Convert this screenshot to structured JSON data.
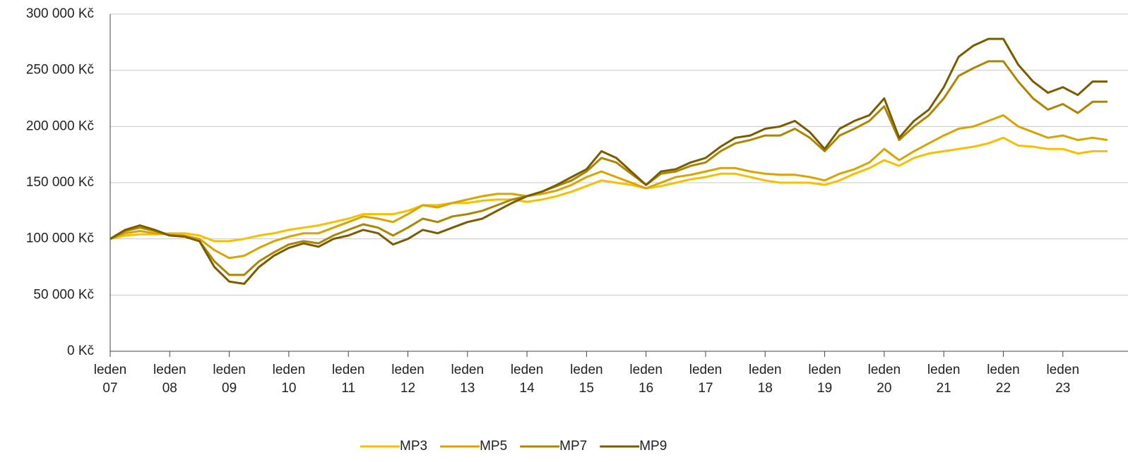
{
  "chart_data": {
    "type": "line",
    "x": [
      "2007-01",
      "2007-04",
      "2007-07",
      "2007-10",
      "2008-01",
      "2008-04",
      "2008-07",
      "2008-10",
      "2009-01",
      "2009-04",
      "2009-07",
      "2009-10",
      "2010-01",
      "2010-04",
      "2010-07",
      "2010-10",
      "2011-01",
      "2011-04",
      "2011-07",
      "2011-10",
      "2012-01",
      "2012-04",
      "2012-07",
      "2012-10",
      "2013-01",
      "2013-04",
      "2013-07",
      "2013-10",
      "2014-01",
      "2014-04",
      "2014-07",
      "2014-10",
      "2015-01",
      "2015-04",
      "2015-07",
      "2015-10",
      "2016-01",
      "2016-04",
      "2016-07",
      "2016-10",
      "2017-01",
      "2017-04",
      "2017-07",
      "2017-10",
      "2018-01",
      "2018-04",
      "2018-07",
      "2018-10",
      "2019-01",
      "2019-04",
      "2019-07",
      "2019-10",
      "2020-01",
      "2020-04",
      "2020-07",
      "2020-10",
      "2021-01",
      "2021-04",
      "2021-07",
      "2021-10",
      "2022-01",
      "2022-04",
      "2022-07",
      "2022-10",
      "2023-01",
      "2023-04",
      "2023-07",
      "2023-10"
    ],
    "series": [
      {
        "name": "MP3",
        "color": "#f5c000",
        "values": [
          100000,
          103000,
          104000,
          104000,
          105000,
          105000,
          103000,
          98000,
          98000,
          100000,
          103000,
          105000,
          108000,
          110000,
          112000,
          115000,
          118000,
          122000,
          122000,
          122000,
          125000,
          130000,
          130000,
          132000,
          132000,
          134000,
          135000,
          135000,
          133000,
          135000,
          138000,
          142000,
          147000,
          152000,
          150000,
          148000,
          145000,
          147000,
          150000,
          153000,
          155000,
          158000,
          158000,
          155000,
          152000,
          150000,
          150000,
          150000,
          148000,
          152000,
          158000,
          163000,
          170000,
          165000,
          172000,
          176000,
          178000,
          180000,
          182000,
          185000,
          190000,
          183000,
          182000,
          180000,
          180000,
          176000,
          178000,
          178000
        ]
      },
      {
        "name": "MP5",
        "color": "#d9a400",
        "values": [
          100000,
          105000,
          107000,
          105000,
          104000,
          103000,
          100000,
          90000,
          83000,
          85000,
          92000,
          98000,
          102000,
          105000,
          105000,
          110000,
          115000,
          120000,
          118000,
          115000,
          122000,
          130000,
          128000,
          132000,
          135000,
          138000,
          140000,
          140000,
          138000,
          140000,
          143000,
          148000,
          155000,
          160000,
          155000,
          150000,
          145000,
          150000,
          155000,
          157000,
          160000,
          163000,
          163000,
          160000,
          158000,
          157000,
          157000,
          155000,
          152000,
          158000,
          162000,
          168000,
          180000,
          170000,
          178000,
          185000,
          192000,
          198000,
          200000,
          205000,
          210000,
          200000,
          195000,
          190000,
          192000,
          188000,
          190000,
          188000
        ]
      },
      {
        "name": "MP7",
        "color": "#ad8500",
        "values": [
          100000,
          107000,
          110000,
          107000,
          103000,
          102000,
          98000,
          80000,
          68000,
          68000,
          80000,
          88000,
          95000,
          98000,
          96000,
          103000,
          108000,
          113000,
          110000,
          103000,
          110000,
          118000,
          115000,
          120000,
          122000,
          125000,
          130000,
          135000,
          138000,
          142000,
          147000,
          152000,
          160000,
          172000,
          168000,
          158000,
          148000,
          158000,
          160000,
          165000,
          168000,
          178000,
          185000,
          188000,
          192000,
          192000,
          198000,
          190000,
          178000,
          192000,
          198000,
          205000,
          218000,
          188000,
          200000,
          210000,
          225000,
          245000,
          252000,
          258000,
          258000,
          240000,
          225000,
          215000,
          220000,
          212000,
          222000,
          222000
        ]
      },
      {
        "name": "MP9",
        "color": "#7a5c00",
        "values": [
          100000,
          108000,
          112000,
          108000,
          103000,
          102000,
          98000,
          75000,
          62000,
          60000,
          75000,
          85000,
          92000,
          96000,
          93000,
          100000,
          103000,
          108000,
          105000,
          95000,
          100000,
          108000,
          105000,
          110000,
          115000,
          118000,
          125000,
          132000,
          138000,
          142000,
          148000,
          155000,
          162000,
          178000,
          172000,
          160000,
          148000,
          160000,
          162000,
          168000,
          172000,
          182000,
          190000,
          192000,
          198000,
          200000,
          205000,
          195000,
          180000,
          198000,
          205000,
          210000,
          225000,
          190000,
          205000,
          215000,
          235000,
          262000,
          272000,
          278000,
          278000,
          255000,
          240000,
          230000,
          235000,
          228000,
          240000,
          240000
        ]
      }
    ],
    "xlim": [
      "2007-01",
      "2023-10"
    ],
    "xticks": [
      {
        "value": "2007-01",
        "label": "leden 07"
      },
      {
        "value": "2008-01",
        "label": "leden 08"
      },
      {
        "value": "2009-01",
        "label": "leden 09"
      },
      {
        "value": "2010-01",
        "label": "leden 10"
      },
      {
        "value": "2011-01",
        "label": "leden 11"
      },
      {
        "value": "2012-01",
        "label": "leden 12"
      },
      {
        "value": "2013-01",
        "label": "leden 13"
      },
      {
        "value": "2014-01",
        "label": "leden 14"
      },
      {
        "value": "2015-01",
        "label": "leden 15"
      },
      {
        "value": "2016-01",
        "label": "leden 16"
      },
      {
        "value": "2017-01",
        "label": "leden 17"
      },
      {
        "value": "2018-01",
        "label": "leden 18"
      },
      {
        "value": "2019-01",
        "label": "leden 19"
      },
      {
        "value": "2020-01",
        "label": "leden 20"
      },
      {
        "value": "2021-01",
        "label": "leden 21"
      },
      {
        "value": "2022-01",
        "label": "leden 22"
      },
      {
        "value": "2023-01",
        "label": "leden 23"
      }
    ],
    "ylim": [
      0,
      300000
    ],
    "yticks": [
      {
        "value": 0,
        "label": "0 Kč"
      },
      {
        "value": 50000,
        "label": "50 000 Kč"
      },
      {
        "value": 100000,
        "label": "100 000 Kč"
      },
      {
        "value": 150000,
        "label": "150 000 Kč"
      },
      {
        "value": 200000,
        "label": "200 000 Kč"
      },
      {
        "value": 250000,
        "label": "250 000 Kč"
      },
      {
        "value": 300000,
        "label": "300 000 Kč"
      }
    ],
    "grid": true,
    "legend": "bottom"
  }
}
